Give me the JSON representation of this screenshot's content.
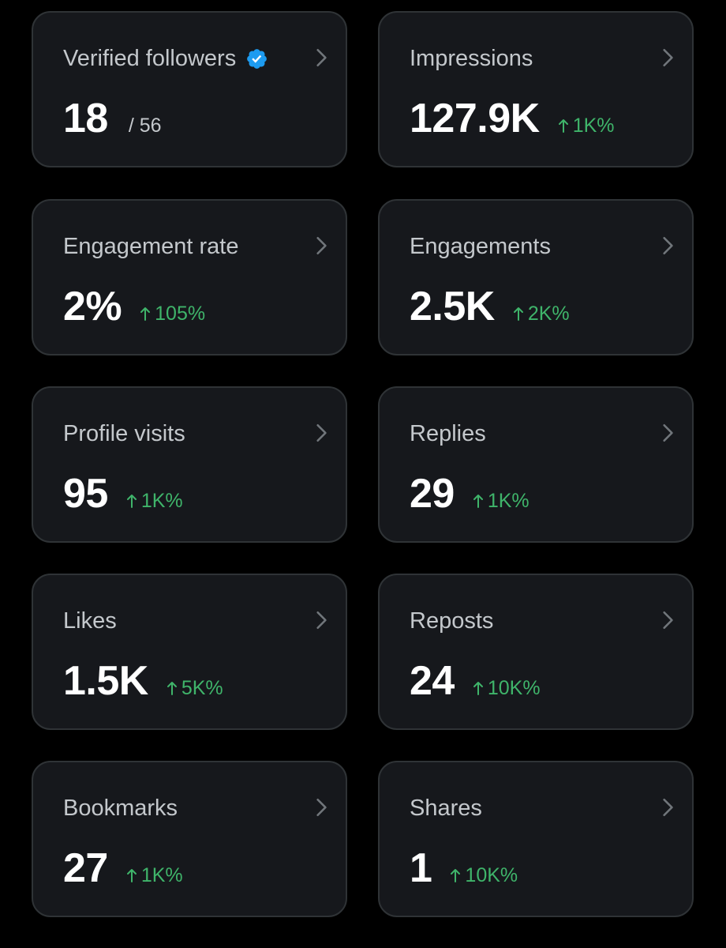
{
  "colors": {
    "background": "#000000",
    "card": "#16181c",
    "card_border": "#2f3336",
    "title": "#c4c8cc",
    "value": "#ffffff",
    "positive": "#3fb46a",
    "verified": "#1d9bf0"
  },
  "cards": [
    {
      "title": "Verified followers",
      "value": "18",
      "secondary": "/ 56",
      "change": "",
      "icon": "verified-badge-icon"
    },
    {
      "title": "Impressions",
      "value": "127.9K",
      "change": "1K%"
    },
    {
      "title": "Engagement rate",
      "value": "2%",
      "change": "105%"
    },
    {
      "title": "Engagements",
      "value": "2.5K",
      "change": "2K%"
    },
    {
      "title": "Profile visits",
      "value": "95",
      "change": "1K%"
    },
    {
      "title": "Replies",
      "value": "29",
      "change": "1K%"
    },
    {
      "title": "Likes",
      "value": "1.5K",
      "change": "5K%"
    },
    {
      "title": "Reposts",
      "value": "24",
      "change": "10K%"
    },
    {
      "title": "Bookmarks",
      "value": "27",
      "change": "1K%"
    },
    {
      "title": "Shares",
      "value": "1",
      "change": "10K%"
    }
  ]
}
